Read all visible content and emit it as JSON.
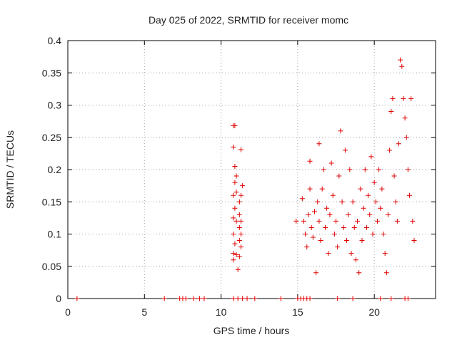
{
  "chart_data": {
    "type": "scatter",
    "title": "Day 025 of 2022, SRMTID for receiver momc",
    "xlabel": "GPS time / hours",
    "ylabel": "SRMTID / TECUs",
    "xlim": [
      0,
      24
    ],
    "ylim": [
      0,
      0.4
    ],
    "xticks": [
      0,
      5,
      10,
      15,
      20
    ],
    "yticks": [
      0,
      0.05,
      0.1,
      0.15,
      0.2,
      0.25,
      0.3,
      0.35,
      0.4
    ],
    "xtick_labels": [
      "0",
      "5",
      "10",
      "15",
      "20"
    ],
    "ytick_labels": [
      "0",
      "0.05",
      "0.1",
      "0.15",
      "0.2",
      "0.25",
      "0.3",
      "0.35",
      "0.4"
    ],
    "grid": true,
    "marker": "+",
    "marker_color": "#e00000",
    "series": [
      {
        "name": "SRMTID",
        "points": [
          [
            0.6,
            0
          ],
          [
            6.3,
            0
          ],
          [
            7.3,
            0
          ],
          [
            7.5,
            0
          ],
          [
            7.7,
            0
          ],
          [
            8.2,
            0
          ],
          [
            8.6,
            0
          ],
          [
            8.9,
            0
          ],
          [
            10.8,
            0
          ],
          [
            11.1,
            0
          ],
          [
            11.4,
            0
          ],
          [
            11.7,
            0
          ],
          [
            12.2,
            0
          ],
          [
            13.9,
            0
          ],
          [
            15.0,
            0
          ],
          [
            15.2,
            0
          ],
          [
            15.4,
            0
          ],
          [
            15.6,
            0
          ],
          [
            15.8,
            0
          ],
          [
            17.6,
            0
          ],
          [
            18.6,
            0
          ],
          [
            20.4,
            0
          ],
          [
            21.1,
            0
          ],
          [
            22.0,
            0
          ],
          [
            22.2,
            0
          ],
          [
            10.8,
            0.268
          ],
          [
            10.9,
            0.268
          ],
          [
            10.8,
            0.235
          ],
          [
            11.3,
            0.231
          ],
          [
            10.9,
            0.205
          ],
          [
            11.0,
            0.19
          ],
          [
            10.9,
            0.18
          ],
          [
            11.0,
            0.165
          ],
          [
            10.8,
            0.16
          ],
          [
            10.9,
            0.14
          ],
          [
            10.8,
            0.125
          ],
          [
            11.0,
            0.12
          ],
          [
            10.8,
            0.1
          ],
          [
            10.9,
            0.085
          ],
          [
            10.8,
            0.07
          ],
          [
            11.0,
            0.068
          ],
          [
            10.8,
            0.06
          ],
          [
            11.1,
            0.045
          ],
          [
            11.2,
            0.13
          ],
          [
            11.3,
            0.12
          ],
          [
            11.2,
            0.11
          ],
          [
            11.3,
            0.1
          ],
          [
            11.2,
            0.09
          ],
          [
            11.3,
            0.08
          ],
          [
            11.2,
            0.065
          ],
          [
            11.4,
            0.175
          ],
          [
            11.3,
            0.16
          ],
          [
            11.2,
            0.15
          ],
          [
            14.9,
            0.12
          ],
          [
            15.3,
            0.155
          ],
          [
            15.4,
            0.12
          ],
          [
            15.5,
            0.1
          ],
          [
            15.6,
            0.08
          ],
          [
            15.7,
            0.13
          ],
          [
            15.8,
            0.213
          ],
          [
            15.8,
            0.17
          ],
          [
            15.9,
            0.11
          ],
          [
            16.0,
            0.095
          ],
          [
            16.1,
            0.135
          ],
          [
            16.2,
            0.04
          ],
          [
            16.3,
            0.15
          ],
          [
            16.4,
            0.24
          ],
          [
            16.4,
            0.12
          ],
          [
            16.5,
            0.09
          ],
          [
            16.6,
            0.17
          ],
          [
            16.7,
            0.2
          ],
          [
            16.8,
            0.11
          ],
          [
            16.9,
            0.14
          ],
          [
            17.0,
            0.07
          ],
          [
            17.1,
            0.13
          ],
          [
            17.2,
            0.21
          ],
          [
            17.3,
            0.16
          ],
          [
            17.4,
            0.1
          ],
          [
            17.5,
            0.12
          ],
          [
            17.6,
            0.08
          ],
          [
            17.7,
            0.19
          ],
          [
            17.8,
            0.26
          ],
          [
            17.9,
            0.15
          ],
          [
            18.0,
            0.11
          ],
          [
            18.1,
            0.23
          ],
          [
            18.2,
            0.09
          ],
          [
            18.3,
            0.13
          ],
          [
            18.4,
            0.2
          ],
          [
            18.5,
            0.07
          ],
          [
            18.6,
            0.15
          ],
          [
            18.7,
            0.11
          ],
          [
            18.8,
            0.06
          ],
          [
            18.9,
            0.12
          ],
          [
            19.0,
            0.04
          ],
          [
            19.1,
            0.17
          ],
          [
            19.2,
            0.09
          ],
          [
            19.3,
            0.14
          ],
          [
            19.4,
            0.2
          ],
          [
            19.5,
            0.11
          ],
          [
            19.6,
            0.16
          ],
          [
            19.7,
            0.13
          ],
          [
            19.8,
            0.22
          ],
          [
            19.9,
            0.1
          ],
          [
            20.0,
            0.18
          ],
          [
            20.1,
            0.15
          ],
          [
            20.2,
            0.12
          ],
          [
            20.3,
            0.2
          ],
          [
            20.4,
            0.14
          ],
          [
            20.5,
            0.17
          ],
          [
            20.6,
            0.1
          ],
          [
            20.7,
            0.07
          ],
          [
            20.8,
            0.04
          ],
          [
            20.9,
            0.13
          ],
          [
            21.0,
            0.23
          ],
          [
            21.1,
            0.29
          ],
          [
            21.2,
            0.31
          ],
          [
            21.3,
            0.19
          ],
          [
            21.4,
            0.15
          ],
          [
            21.5,
            0.12
          ],
          [
            21.6,
            0.24
          ],
          [
            21.7,
            0.37
          ],
          [
            21.8,
            0.36
          ],
          [
            21.9,
            0.31
          ],
          [
            22.0,
            0.28
          ],
          [
            22.1,
            0.25
          ],
          [
            22.2,
            0.2
          ],
          [
            22.3,
            0.16
          ],
          [
            22.4,
            0.31
          ],
          [
            22.5,
            0.12
          ],
          [
            22.6,
            0.09
          ]
        ]
      }
    ]
  }
}
